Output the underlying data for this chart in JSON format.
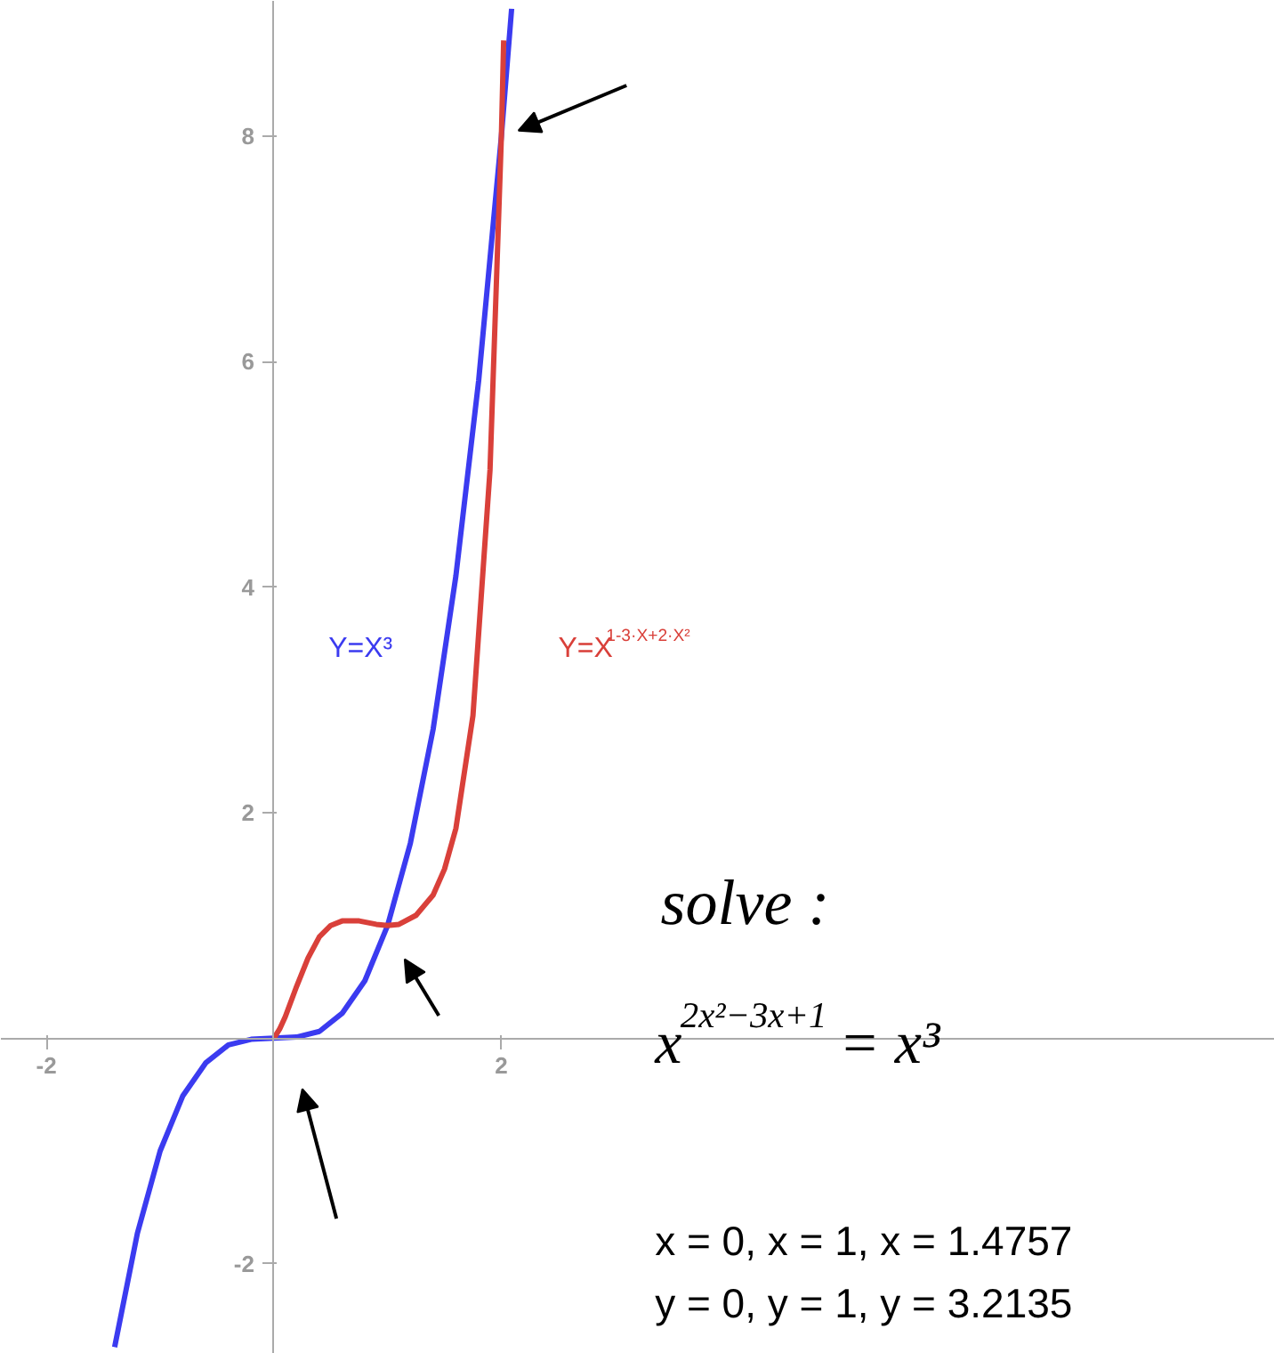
{
  "chart_data": {
    "type": "line",
    "xlim": [
      -2.4,
      8.8
    ],
    "ylim": [
      -2.8,
      9.2
    ],
    "xticks": [
      -2,
      2
    ],
    "yticks": [
      -2,
      2,
      4,
      6,
      8
    ],
    "grid": false,
    "marker": "none",
    "line_style": "solid",
    "series": [
      {
        "name": "Y=X³",
        "color": "#3b3bf0",
        "x": [
          -1.4,
          -1.2,
          -1,
          -0.8,
          -0.6,
          -0.4,
          -0.2,
          0,
          0.2,
          0.4,
          0.6,
          0.8,
          1,
          1.2,
          1.4,
          1.6,
          1.8,
          2,
          2.09
        ],
        "values": [
          -2.74,
          -1.73,
          -1,
          -0.51,
          -0.22,
          -0.06,
          -0.01,
          0,
          0.01,
          0.06,
          0.22,
          0.51,
          1,
          1.73,
          2.74,
          4.1,
          5.83,
          8,
          9.13
        ]
      },
      {
        "name": "Y=X$^{1-3·X+2·X²}$",
        "color": "#d9403a",
        "x": [
          0,
          0.05,
          0.1,
          0.2,
          0.3,
          0.4,
          0.5,
          0.6,
          0.75,
          0.9,
          1,
          1.1,
          1.25,
          1.4,
          1.5,
          1.6,
          1.75,
          1.9,
          2,
          2.02
        ],
        "values": [
          0,
          0.08,
          0.19,
          0.46,
          0.71,
          0.9,
          1,
          1.04,
          1.04,
          1.01,
          1,
          1.01,
          1.09,
          1.27,
          1.5,
          1.86,
          2.86,
          5.04,
          8,
          8.85
        ]
      }
    ],
    "annotations": [
      "solve :",
      "x$^{2x²−3x+1}$ = x³",
      "x = 0, x = 1, x = 1.4757",
      "y = 0, y = 1, y = 3.2135"
    ]
  }
}
